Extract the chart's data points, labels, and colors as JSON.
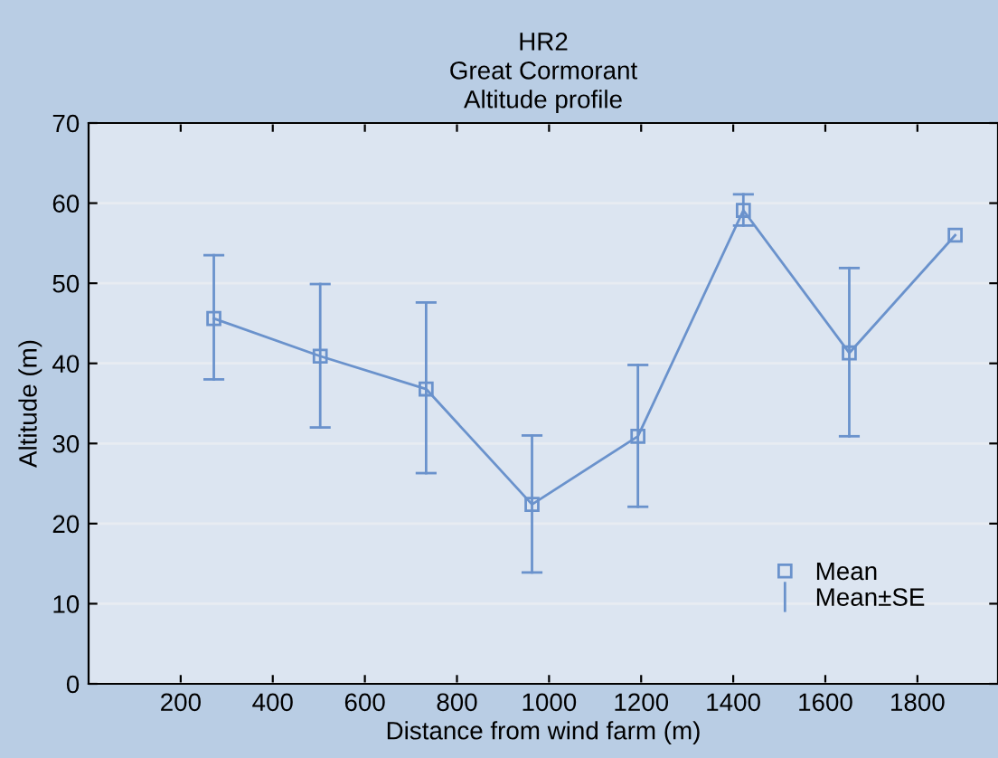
{
  "chart_data": {
    "type": "line",
    "title": "HR2\nGreat Cormorant\nAltitude profile",
    "xlabel": "Distance from wind farm (m)",
    "ylabel": "Altitude (m)",
    "x": [
      272,
      503,
      733,
      963,
      1193,
      1422,
      1652,
      1882
    ],
    "series": [
      {
        "name": "Mean",
        "color": "#6a92cc",
        "values": [
          45.6,
          40.9,
          36.8,
          22.4,
          30.9,
          59.1,
          41.3,
          56.0
        ],
        "errors": [
          [
            38.0,
            53.5
          ],
          [
            32.0,
            49.9
          ],
          [
            26.3,
            47.6
          ],
          [
            13.9,
            31.0
          ],
          [
            22.1,
            39.8
          ],
          [
            57.2,
            61.1
          ],
          [
            30.9,
            51.9
          ],
          null
        ]
      }
    ],
    "annotations": [
      "Mean±SE"
    ],
    "xlim": [
      0,
      1975
    ],
    "xticks": [
      200,
      400,
      600,
      800,
      1000,
      1200,
      1400,
      1600,
      1800
    ],
    "ylim": [
      0,
      70
    ],
    "yticks": [
      0,
      10,
      20,
      30,
      40,
      50,
      60,
      70
    ],
    "grid": "y",
    "legend": "bottom right",
    "marker": "square",
    "line_style": "solid"
  }
}
